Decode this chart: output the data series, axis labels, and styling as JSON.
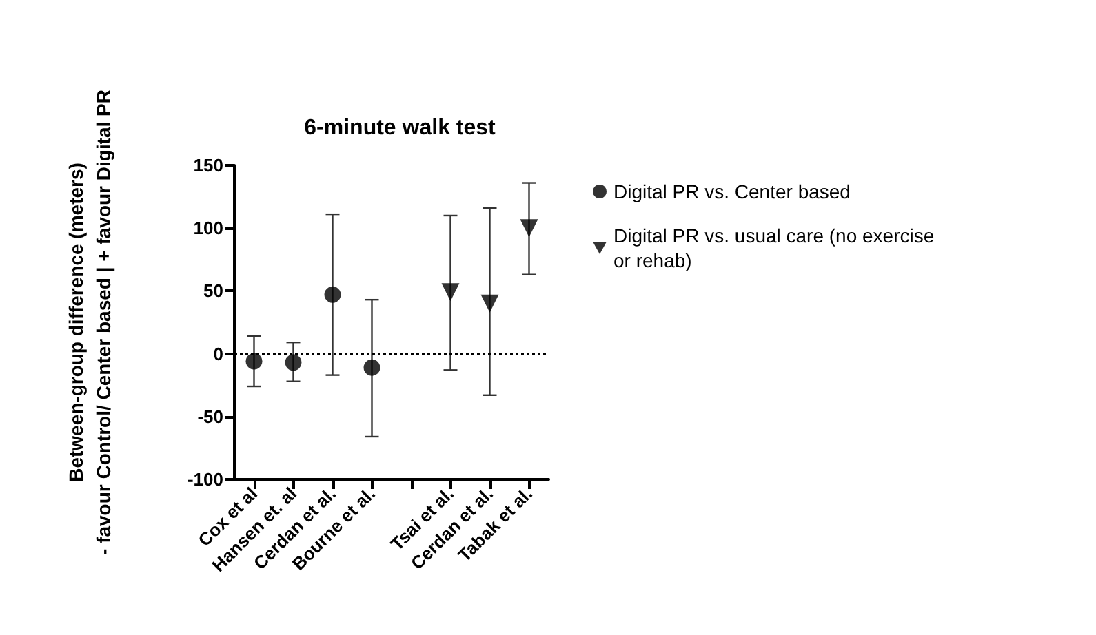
{
  "chart_data": {
    "type": "scatter",
    "title": "6-minute walk test",
    "ylabel": "Between-group difference (meters)\n- favour Control/ Center based | + favour Digital PR",
    "categories": [
      "Cox et al",
      "Hansen et. al",
      "Cerdan et al.",
      "Bourne et al.",
      null,
      "Tsai et al.",
      "Cerdan et al.",
      "Tabak et al."
    ],
    "series": [
      {
        "name": "Digital PR vs. Center based",
        "color": "#000000",
        "marker": "circle",
        "values": [
          -6,
          -7,
          47,
          -11,
          null,
          null,
          null,
          null
        ],
        "errors": [
          [
            -26,
            14
          ],
          [
            -22,
            9
          ],
          [
            -17,
            111
          ],
          [
            -66,
            43
          ],
          null,
          null,
          null,
          null
        ]
      },
      {
        "name": "Digital PR vs. usual care (no exercise or rehab)",
        "color": "#000000",
        "marker": "triangle",
        "values": [
          null,
          null,
          null,
          null,
          null,
          49,
          40,
          100
        ],
        "errors": [
          null,
          null,
          null,
          null,
          null,
          [
            -13,
            110
          ],
          [
            -33,
            116
          ],
          [
            63,
            136
          ]
        ]
      }
    ],
    "ylim": [
      -100,
      150
    ],
    "yticks": [
      -100,
      -50,
      0,
      50,
      100,
      150
    ],
    "ref_lines": [
      {
        "axis": "y",
        "value": 0,
        "line_style": "dotted",
        "color": "#000000"
      }
    ],
    "grid": false,
    "legend": "right"
  }
}
